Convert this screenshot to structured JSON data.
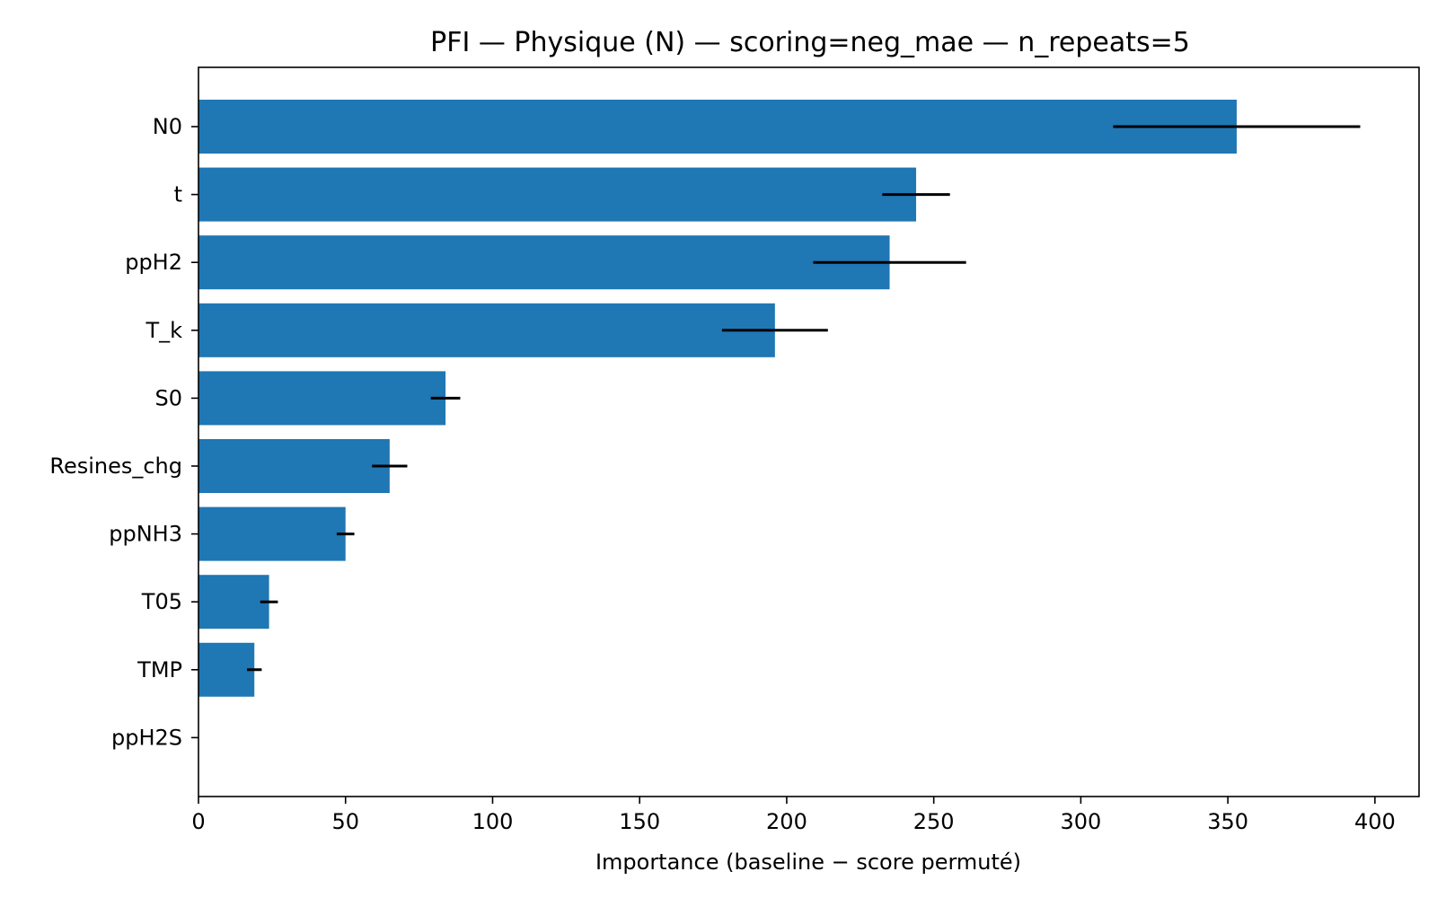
{
  "chart_data": {
    "type": "bar",
    "orientation": "horizontal",
    "title": "PFI — Physique (N) — scoring=neg_mae — n_repeats=5",
    "xlabel": "Importance (baseline − score permuté)",
    "ylabel": "",
    "xlim": [
      0,
      415
    ],
    "x_ticks": [
      0,
      50,
      100,
      150,
      200,
      250,
      300,
      350,
      400
    ],
    "categories": [
      "N0",
      "t",
      "ppH2",
      "T_k",
      "S0",
      "Resines_chg",
      "ppNH3",
      "T05",
      "TMP",
      "ppH2S"
    ],
    "values": [
      353,
      244,
      235,
      196,
      84,
      65,
      50,
      24,
      19,
      0
    ],
    "errors": [
      42,
      11.5,
      26,
      18,
      5,
      6,
      3,
      3,
      2.5,
      0
    ],
    "bar_color": "#1f77b4",
    "error_color": "#000000",
    "grid": false,
    "legend": "none"
  }
}
